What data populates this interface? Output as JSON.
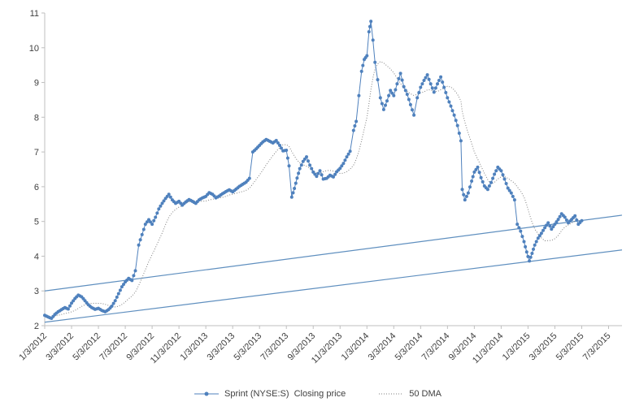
{
  "chart_data": {
    "type": "line",
    "title": "",
    "y_axis": {
      "min": 2,
      "max": 11,
      "ticks": [
        2,
        3,
        4,
        5,
        6,
        7,
        8,
        9,
        10,
        11
      ]
    },
    "x_axis": {
      "max_months": 43,
      "tick_months": [
        0,
        2,
        4,
        6,
        8,
        10,
        12,
        14,
        16,
        18,
        20,
        22,
        24,
        26,
        28,
        30,
        32,
        34,
        36,
        38,
        40,
        42
      ],
      "tick_labels": [
        "1/3/2012",
        "3/3/2012",
        "5/3/2012",
        "7/3/2012",
        "9/3/2012",
        "11/3/2012",
        "1/3/2013",
        "3/3/2013",
        "5/3/2013",
        "7/3/2013",
        "9/3/2013",
        "11/3/2013",
        "1/3/2014",
        "3/3/2014",
        "5/3/2014",
        "7/3/2014",
        "9/3/2014",
        "11/3/2014",
        "1/3/2015",
        "3/3/2015",
        "5/3/2015",
        "7/3/2015"
      ]
    },
    "series": [
      {
        "name": "Sprint (NYSE:S)  Closing price",
        "type": "line-with-markers",
        "color": "#4F81BD",
        "points": [
          [
            0,
            2.3
          ],
          [
            0.25,
            2.25
          ],
          [
            0.5,
            2.21
          ],
          [
            0.75,
            2.32
          ],
          [
            1,
            2.4
          ],
          [
            1.25,
            2.46
          ],
          [
            1.5,
            2.52
          ],
          [
            1.75,
            2.48
          ],
          [
            2,
            2.65
          ],
          [
            2.25,
            2.78
          ],
          [
            2.5,
            2.88
          ],
          [
            2.75,
            2.83
          ],
          [
            3,
            2.72
          ],
          [
            3.25,
            2.6
          ],
          [
            3.5,
            2.52
          ],
          [
            3.75,
            2.47
          ],
          [
            4,
            2.5
          ],
          [
            4.25,
            2.44
          ],
          [
            4.5,
            2.4
          ],
          [
            4.75,
            2.46
          ],
          [
            5,
            2.56
          ],
          [
            5.25,
            2.72
          ],
          [
            5.5,
            2.92
          ],
          [
            5.75,
            3.12
          ],
          [
            6,
            3.26
          ],
          [
            6.25,
            3.36
          ],
          [
            6.5,
            3.3
          ],
          [
            6.75,
            3.58
          ],
          [
            7,
            4.32
          ],
          [
            7.25,
            4.62
          ],
          [
            7.5,
            4.92
          ],
          [
            7.75,
            5.05
          ],
          [
            8,
            4.92
          ],
          [
            8.25,
            5.12
          ],
          [
            8.5,
            5.36
          ],
          [
            8.75,
            5.52
          ],
          [
            9,
            5.66
          ],
          [
            9.25,
            5.78
          ],
          [
            9.5,
            5.62
          ],
          [
            9.75,
            5.52
          ],
          [
            10,
            5.58
          ],
          [
            10.25,
            5.47
          ],
          [
            10.5,
            5.56
          ],
          [
            10.75,
            5.63
          ],
          [
            11,
            5.58
          ],
          [
            11.25,
            5.52
          ],
          [
            11.5,
            5.62
          ],
          [
            11.75,
            5.68
          ],
          [
            12,
            5.72
          ],
          [
            12.25,
            5.83
          ],
          [
            12.5,
            5.78
          ],
          [
            12.75,
            5.68
          ],
          [
            13,
            5.73
          ],
          [
            13.25,
            5.8
          ],
          [
            13.5,
            5.86
          ],
          [
            13.75,
            5.91
          ],
          [
            14,
            5.85
          ],
          [
            14.25,
            5.93
          ],
          [
            14.5,
            6.01
          ],
          [
            14.75,
            6.07
          ],
          [
            15,
            6.13
          ],
          [
            15.25,
            6.24
          ],
          [
            15.5,
            7
          ],
          [
            15.75,
            7.09
          ],
          [
            16,
            7.19
          ],
          [
            16.25,
            7.29
          ],
          [
            16.5,
            7.36
          ],
          [
            16.75,
            7.31
          ],
          [
            17,
            7.26
          ],
          [
            17.25,
            7.33
          ],
          [
            17.5,
            7.19
          ],
          [
            17.75,
            7.03
          ],
          [
            18,
            7.05
          ],
          [
            18.2,
            6.6
          ],
          [
            18.4,
            5.7
          ],
          [
            18.6,
            5.95
          ],
          [
            18.8,
            6.25
          ],
          [
            19,
            6.52
          ],
          [
            19.25,
            6.73
          ],
          [
            19.5,
            6.86
          ],
          [
            19.75,
            6.62
          ],
          [
            20,
            6.42
          ],
          [
            20.25,
            6.3
          ],
          [
            20.5,
            6.46
          ],
          [
            20.75,
            6.22
          ],
          [
            21,
            6.24
          ],
          [
            21.25,
            6.33
          ],
          [
            21.5,
            6.28
          ],
          [
            21.75,
            6.43
          ],
          [
            22,
            6.53
          ],
          [
            22.25,
            6.67
          ],
          [
            22.5,
            6.86
          ],
          [
            22.75,
            7.02
          ],
          [
            23,
            7.62
          ],
          [
            23.2,
            7.88
          ],
          [
            23.4,
            8.62
          ],
          [
            23.6,
            9.32
          ],
          [
            23.8,
            9.66
          ],
          [
            24,
            9.77
          ],
          [
            24.15,
            10.46
          ],
          [
            24.3,
            10.76
          ],
          [
            24.45,
            10.22
          ],
          [
            24.6,
            9.58
          ],
          [
            24.8,
            9.08
          ],
          [
            25,
            8.56
          ],
          [
            25.25,
            8.22
          ],
          [
            25.5,
            8.47
          ],
          [
            25.75,
            8.77
          ],
          [
            26,
            8.62
          ],
          [
            26.25,
            8.96
          ],
          [
            26.5,
            9.26
          ],
          [
            26.75,
            8.88
          ],
          [
            27,
            8.66
          ],
          [
            27.25,
            8.36
          ],
          [
            27.5,
            8.06
          ],
          [
            27.75,
            8.56
          ],
          [
            28,
            8.86
          ],
          [
            28.25,
            9.06
          ],
          [
            28.5,
            9.22
          ],
          [
            28.75,
            8.96
          ],
          [
            29,
            8.72
          ],
          [
            29.25,
            8.96
          ],
          [
            29.5,
            9.16
          ],
          [
            29.75,
            8.86
          ],
          [
            30,
            8.56
          ],
          [
            30.25,
            8.32
          ],
          [
            30.5,
            8.06
          ],
          [
            30.75,
            7.76
          ],
          [
            31,
            7.32
          ],
          [
            31.1,
            5.92
          ],
          [
            31.3,
            5.62
          ],
          [
            31.55,
            5.82
          ],
          [
            31.8,
            6.16
          ],
          [
            32,
            6.42
          ],
          [
            32.25,
            6.56
          ],
          [
            32.5,
            6.26
          ],
          [
            32.75,
            6.02
          ],
          [
            33,
            5.92
          ],
          [
            33.25,
            6.12
          ],
          [
            33.5,
            6.36
          ],
          [
            33.75,
            6.56
          ],
          [
            34,
            6.46
          ],
          [
            34.25,
            6.22
          ],
          [
            34.5,
            5.96
          ],
          [
            34.75,
            5.82
          ],
          [
            35,
            5.62
          ],
          [
            35.2,
            4.92
          ],
          [
            35.45,
            4.72
          ],
          [
            35.7,
            4.42
          ],
          [
            35.9,
            4.12
          ],
          [
            36.1,
            3.86
          ],
          [
            36.3,
            4.08
          ],
          [
            36.5,
            4.32
          ],
          [
            36.75,
            4.52
          ],
          [
            37,
            4.66
          ],
          [
            37.25,
            4.82
          ],
          [
            37.5,
            4.96
          ],
          [
            37.75,
            4.78
          ],
          [
            38,
            4.92
          ],
          [
            38.25,
            5.06
          ],
          [
            38.5,
            5.22
          ],
          [
            38.75,
            5.12
          ],
          [
            39,
            4.96
          ],
          [
            39.25,
            5.06
          ],
          [
            39.5,
            5.16
          ],
          [
            39.75,
            4.92
          ],
          [
            40,
            5.02
          ]
        ]
      },
      {
        "name": "50 DMA",
        "type": "dotted-line",
        "color": "#7F7F7F",
        "window_points": 10
      }
    ],
    "trendlines": [
      {
        "name": "upper-channel-line",
        "color": "#5F8FBF",
        "from": [
          0,
          3.0
        ],
        "to": [
          43,
          5.18
        ]
      },
      {
        "name": "lower-channel-line",
        "color": "#5F8FBF",
        "from": [
          0,
          2.1
        ],
        "to": [
          43,
          4.18
        ]
      }
    ],
    "legend": {
      "position": "bottom-center"
    },
    "colors": {
      "axis": "#BFBFBF",
      "label": "#404040"
    }
  }
}
